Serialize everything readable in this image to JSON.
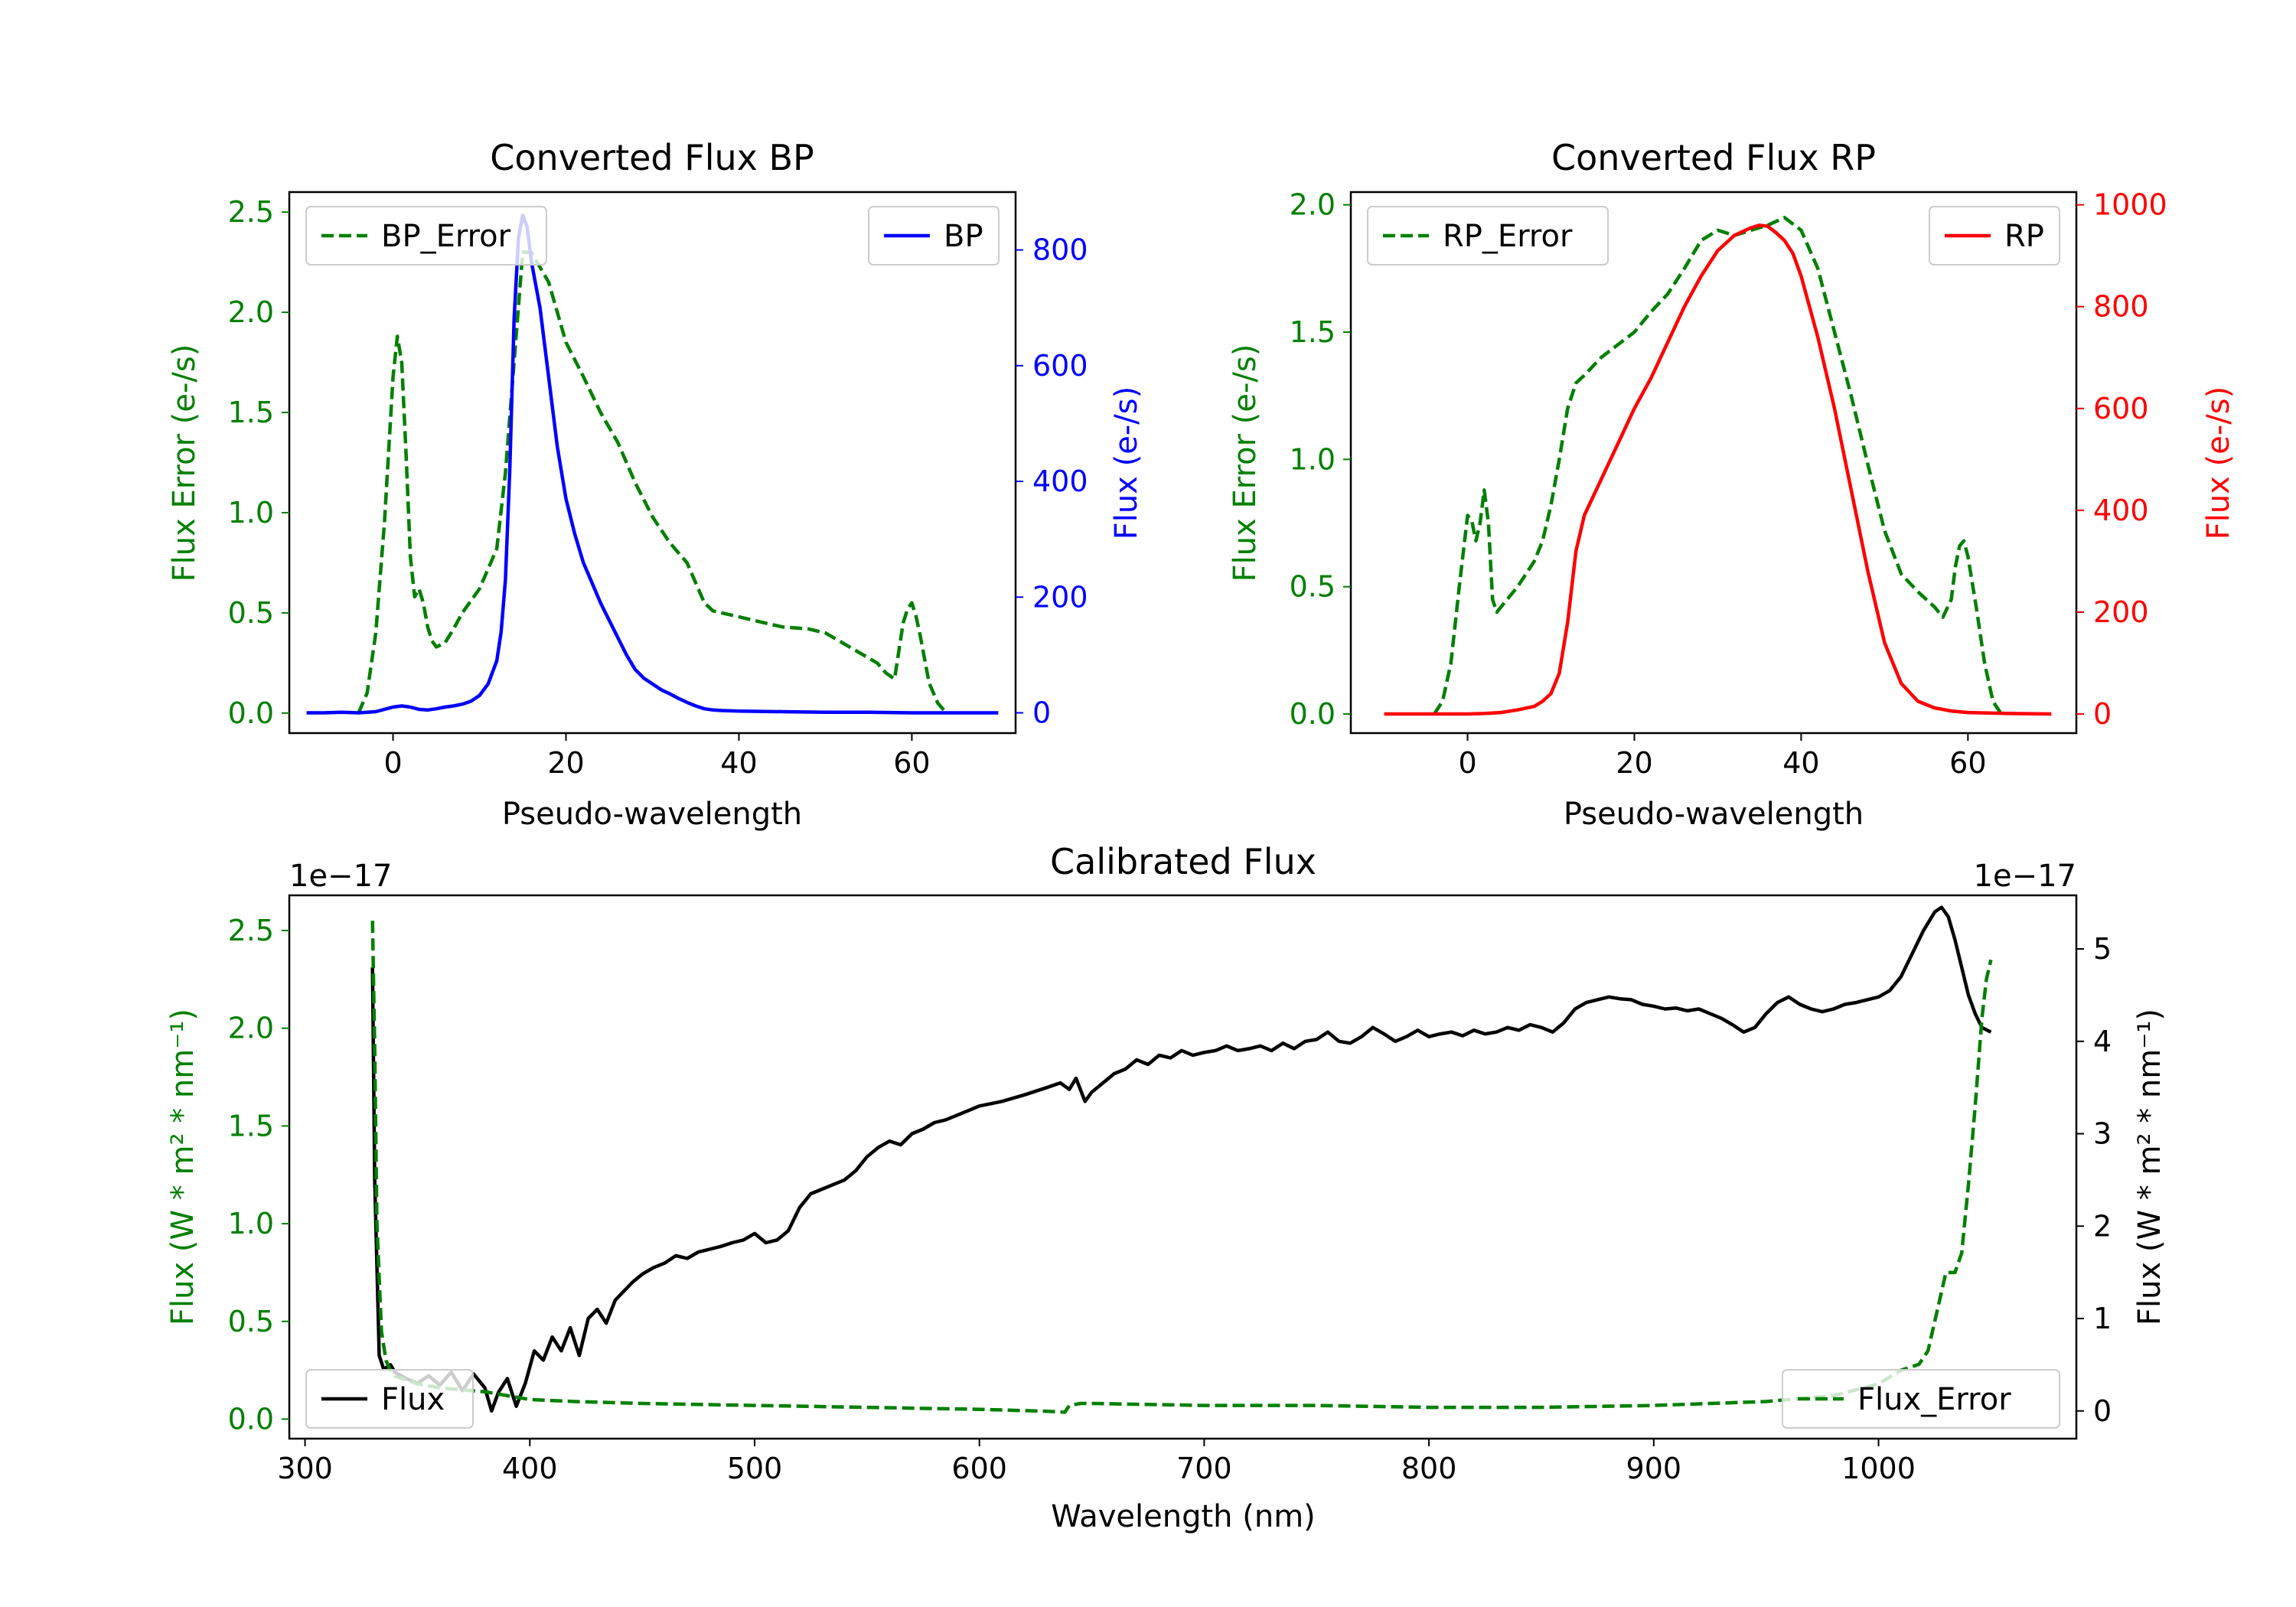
{
  "chart_data": [
    {
      "type": "line",
      "title": "Converted Flux BP",
      "xlabel": "Pseudo-wavelength",
      "ylabel_left": "Flux Error (e-/s)",
      "ylabel_right": "Flux (e-/s)",
      "xlim": [
        -12,
        72
      ],
      "ylim_left": [
        -0.1,
        2.6
      ],
      "ylim_right": [
        -35,
        900
      ],
      "xticks": [
        0,
        20,
        40,
        60
      ],
      "yticks_left": [
        0.0,
        0.5,
        1.0,
        1.5,
        2.0,
        2.5
      ],
      "yticks_right": [
        0,
        200,
        400,
        600,
        800
      ],
      "colors": {
        "left_axis": "#008000",
        "right_axis": "#0000ff"
      },
      "legend_left": {
        "label": "BP_Error",
        "placement": "upper left",
        "style": "dashed",
        "color": "#008000"
      },
      "legend_right": {
        "label": "BP",
        "placement": "upper right",
        "style": "solid",
        "color": "#0000ff"
      },
      "series": [
        {
          "name": "BP_Error",
          "axis": "left",
          "style": "dashed",
          "color": "#008000",
          "x": [
            -4,
            -3,
            -2,
            -1,
            0,
            0.5,
            1,
            1.5,
            2,
            2.5,
            3,
            3.5,
            4,
            4.5,
            5,
            6,
            7,
            8,
            9,
            10,
            11,
            12,
            13,
            14,
            15,
            16,
            18,
            20,
            22,
            24,
            26,
            28,
            30,
            32,
            33,
            34,
            35,
            36,
            37,
            38,
            40,
            42,
            45,
            48,
            50,
            52,
            54,
            56,
            57,
            58,
            59,
            59.5,
            60,
            60.5,
            61,
            62,
            63,
            64
          ],
          "y": [
            0.0,
            0.1,
            0.4,
            0.95,
            1.68,
            1.88,
            1.75,
            1.3,
            0.78,
            0.58,
            0.62,
            0.55,
            0.43,
            0.36,
            0.33,
            0.35,
            0.42,
            0.5,
            0.56,
            0.62,
            0.72,
            0.82,
            1.2,
            1.75,
            2.3,
            2.3,
            2.15,
            1.85,
            1.68,
            1.5,
            1.35,
            1.15,
            0.98,
            0.85,
            0.8,
            0.75,
            0.65,
            0.55,
            0.51,
            0.5,
            0.48,
            0.46,
            0.43,
            0.42,
            0.4,
            0.35,
            0.3,
            0.25,
            0.2,
            0.17,
            0.45,
            0.52,
            0.55,
            0.48,
            0.38,
            0.15,
            0.05,
            0.0
          ]
        },
        {
          "name": "BP",
          "axis": "right",
          "style": "solid",
          "color": "#0000ff",
          "x": [
            -10,
            -8,
            -6,
            -4,
            -2,
            0,
            1,
            2,
            3,
            4,
            5,
            6,
            7,
            8,
            9,
            10,
            11,
            12,
            12.5,
            13,
            13.5,
            14,
            14.5,
            15,
            15.5,
            16,
            17,
            18,
            19,
            20,
            21,
            22,
            23,
            24,
            25,
            26,
            27,
            28,
            29,
            30,
            31,
            32,
            33,
            34,
            35,
            36,
            37,
            38,
            40,
            45,
            50,
            55,
            60,
            65,
            70
          ],
          "y": [
            0,
            0,
            1,
            0,
            2,
            10,
            12,
            10,
            6,
            5,
            7,
            10,
            12,
            15,
            20,
            30,
            50,
            90,
            140,
            230,
            420,
            680,
            820,
            860,
            840,
            780,
            700,
            580,
            460,
            370,
            310,
            260,
            225,
            190,
            160,
            130,
            100,
            75,
            60,
            50,
            40,
            33,
            25,
            18,
            12,
            7,
            5,
            4,
            3,
            2,
            1,
            1,
            0,
            0,
            0
          ]
        }
      ]
    },
    {
      "type": "line",
      "title": "Converted Flux RP",
      "xlabel": "Pseudo-wavelength",
      "ylabel_left": "Flux Error (e-/s)",
      "ylabel_right": "Flux (e-/s)",
      "xlim": [
        -14,
        73
      ],
      "ylim_left": [
        -0.075,
        2.05
      ],
      "ylim_right": [
        -37.5,
        1025
      ],
      "xticks": [
        0,
        20,
        40,
        60
      ],
      "yticks_left": [
        0.0,
        0.5,
        1.0,
        1.5,
        2.0
      ],
      "yticks_right": [
        0,
        200,
        400,
        600,
        800,
        1000
      ],
      "colors": {
        "left_axis": "#008000",
        "right_axis": "#ff0000"
      },
      "legend_left": {
        "label": "RP_Error",
        "placement": "upper left",
        "style": "dashed",
        "color": "#008000"
      },
      "legend_right": {
        "label": "RP",
        "placement": "upper right",
        "style": "solid",
        "color": "#ff0000"
      },
      "series": [
        {
          "name": "RP_Error",
          "axis": "left",
          "style": "dashed",
          "color": "#008000",
          "x": [
            -4,
            -3,
            -2,
            -1,
            0,
            0.5,
            1,
            1.5,
            2,
            2.5,
            3,
            3.5,
            4,
            5,
            6,
            7,
            8,
            9,
            10,
            11,
            12,
            13,
            14,
            16,
            18,
            20,
            22,
            24,
            26,
            28,
            30,
            32,
            34,
            36,
            38,
            40,
            42,
            44,
            46,
            48,
            50,
            52,
            54,
            56,
            57,
            58,
            58.5,
            59,
            59.5,
            60,
            61,
            62,
            63,
            64
          ],
          "y": [
            0.0,
            0.05,
            0.2,
            0.5,
            0.78,
            0.76,
            0.68,
            0.75,
            0.88,
            0.75,
            0.45,
            0.4,
            0.42,
            0.46,
            0.5,
            0.55,
            0.6,
            0.68,
            0.82,
            1.0,
            1.2,
            1.3,
            1.33,
            1.4,
            1.45,
            1.5,
            1.58,
            1.65,
            1.75,
            1.86,
            1.9,
            1.88,
            1.9,
            1.92,
            1.95,
            1.9,
            1.75,
            1.5,
            1.25,
            0.98,
            0.72,
            0.55,
            0.48,
            0.42,
            0.38,
            0.45,
            0.58,
            0.66,
            0.68,
            0.62,
            0.42,
            0.2,
            0.05,
            0.0
          ]
        },
        {
          "name": "RP",
          "axis": "right",
          "style": "solid",
          "color": "#ff0000",
          "x": [
            -10,
            -5,
            0,
            2,
            4,
            6,
            8,
            9,
            10,
            11,
            12,
            13,
            14,
            16,
            18,
            20,
            22,
            24,
            26,
            28,
            30,
            32,
            34,
            35,
            36,
            37,
            38,
            39,
            40,
            42,
            44,
            46,
            48,
            50,
            52,
            54,
            56,
            58,
            60,
            65,
            70
          ],
          "y": [
            0,
            0,
            0,
            1,
            3,
            8,
            15,
            25,
            40,
            80,
            180,
            320,
            390,
            460,
            530,
            600,
            660,
            730,
            800,
            860,
            910,
            940,
            955,
            960,
            958,
            945,
            930,
            905,
            860,
            740,
            600,
            440,
            280,
            140,
            60,
            25,
            12,
            6,
            3,
            1,
            0
          ]
        }
      ]
    },
    {
      "type": "line",
      "title": "Calibrated Flux",
      "xlabel": "Wavelength (nm)",
      "ylabel_left": "Flux (W * m² * nm⁻¹)",
      "ylabel_right": "Flux (W * m² * nm⁻¹)",
      "offset_left": "1e−17",
      "offset_right": "1e−17",
      "xlim": [
        293,
        1088
      ],
      "ylim_left": [
        -0.1,
        2.68
      ],
      "ylim_right": [
        -0.3,
        5.58
      ],
      "xticks": [
        300,
        400,
        500,
        600,
        700,
        800,
        900,
        1000
      ],
      "yticks_left": [
        0.0,
        0.5,
        1.0,
        1.5,
        2.0,
        2.5
      ],
      "yticks_right": [
        0,
        1,
        2,
        3,
        4,
        5
      ],
      "colors": {
        "left_axis": "#008000",
        "right_axis": "#000000"
      },
      "legend_left": {
        "label": "Flux",
        "placement": "lower left",
        "style": "solid",
        "color": "#000000"
      },
      "legend_right": {
        "label": "Flux_Error",
        "placement": "lower right",
        "style": "dashed",
        "color": "#008000"
      },
      "series": [
        {
          "name": "Flux",
          "axis": "right",
          "style": "solid",
          "color": "#000000",
          "x": [
            330,
            331,
            333,
            335,
            338,
            340,
            345,
            350,
            355,
            360,
            365,
            370,
            375,
            380,
            383,
            386,
            390,
            394,
            398,
            402,
            406,
            410,
            414,
            418,
            422,
            426,
            430,
            434,
            438,
            442,
            446,
            450,
            455,
            460,
            465,
            470,
            475,
            480,
            485,
            490,
            495,
            500,
            505,
            510,
            515,
            520,
            525,
            530,
            535,
            540,
            545,
            550,
            555,
            560,
            565,
            570,
            575,
            580,
            585,
            590,
            600,
            610,
            620,
            630,
            636,
            640,
            643,
            647,
            650,
            655,
            660,
            665,
            670,
            675,
            680,
            685,
            690,
            695,
            700,
            705,
            710,
            715,
            720,
            725,
            730,
            735,
            740,
            745,
            750,
            755,
            760,
            765,
            770,
            775,
            780,
            785,
            790,
            795,
            800,
            805,
            810,
            815,
            820,
            825,
            830,
            835,
            840,
            845,
            850,
            855,
            860,
            865,
            870,
            875,
            880,
            885,
            890,
            895,
            900,
            905,
            910,
            915,
            920,
            925,
            930,
            935,
            940,
            945,
            950,
            955,
            960,
            965,
            970,
            975,
            980,
            985,
            990,
            995,
            1000,
            1005,
            1010,
            1015,
            1020,
            1025,
            1028,
            1031,
            1034,
            1037,
            1040,
            1043,
            1046,
            1050
          ],
          "y": [
            4.8,
            2.5,
            0.6,
            0.45,
            0.5,
            0.42,
            0.35,
            0.3,
            0.38,
            0.28,
            0.42,
            0.22,
            0.4,
            0.25,
            0.0,
            0.2,
            0.35,
            0.05,
            0.3,
            0.65,
            0.55,
            0.8,
            0.65,
            0.9,
            0.6,
            1.0,
            1.1,
            0.95,
            1.2,
            1.3,
            1.4,
            1.48,
            1.55,
            1.6,
            1.68,
            1.65,
            1.72,
            1.75,
            1.78,
            1.82,
            1.85,
            1.92,
            1.82,
            1.85,
            1.95,
            2.2,
            2.35,
            2.4,
            2.45,
            2.5,
            2.6,
            2.75,
            2.85,
            2.92,
            2.88,
            3.0,
            3.05,
            3.12,
            3.15,
            3.2,
            3.3,
            3.35,
            3.42,
            3.5,
            3.55,
            3.48,
            3.6,
            3.35,
            3.45,
            3.55,
            3.65,
            3.7,
            3.8,
            3.75,
            3.85,
            3.82,
            3.9,
            3.85,
            3.88,
            3.9,
            3.95,
            3.9,
            3.92,
            3.95,
            3.9,
            3.98,
            3.92,
            4.0,
            4.02,
            4.1,
            4.0,
            3.98,
            4.05,
            4.15,
            4.08,
            4.0,
            4.05,
            4.12,
            4.05,
            4.08,
            4.1,
            4.06,
            4.12,
            4.08,
            4.1,
            4.15,
            4.12,
            4.18,
            4.15,
            4.1,
            4.2,
            4.35,
            4.42,
            4.45,
            4.48,
            4.46,
            4.45,
            4.4,
            4.38,
            4.35,
            4.36,
            4.33,
            4.35,
            4.3,
            4.25,
            4.18,
            4.1,
            4.15,
            4.3,
            4.42,
            4.48,
            4.4,
            4.35,
            4.32,
            4.35,
            4.4,
            4.42,
            4.45,
            4.48,
            4.55,
            4.7,
            4.95,
            5.2,
            5.4,
            5.45,
            5.35,
            5.1,
            4.8,
            4.5,
            4.3,
            4.15,
            4.1
          ]
        },
        {
          "name": "Flux_Error",
          "axis": "left",
          "style": "dashed",
          "color": "#008000",
          "x": [
            330,
            331,
            332,
            334,
            336,
            338,
            340,
            345,
            350,
            360,
            370,
            380,
            390,
            400,
            420,
            450,
            500,
            550,
            600,
            630,
            638,
            640,
            645,
            650,
            700,
            750,
            800,
            850,
            900,
            950,
            980,
            1000,
            1010,
            1018,
            1022,
            1026,
            1030,
            1034,
            1037,
            1040,
            1043,
            1046,
            1048,
            1050
          ],
          "y": [
            2.55,
            1.9,
            1.0,
            0.45,
            0.3,
            0.25,
            0.22,
            0.2,
            0.18,
            0.16,
            0.15,
            0.14,
            0.12,
            0.1,
            0.09,
            0.08,
            0.07,
            0.06,
            0.05,
            0.04,
            0.035,
            0.07,
            0.08,
            0.08,
            0.07,
            0.07,
            0.06,
            0.06,
            0.07,
            0.09,
            0.12,
            0.18,
            0.25,
            0.28,
            0.35,
            0.55,
            0.75,
            0.75,
            0.85,
            1.2,
            1.6,
            2.05,
            2.25,
            2.35
          ]
        }
      ]
    }
  ]
}
